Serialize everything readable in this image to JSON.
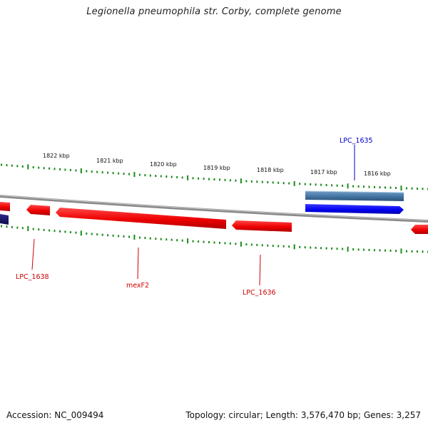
{
  "title": "Legionella pneumophila str. Corby, complete genome",
  "footer": {
    "accession": "Accession: NC_009494",
    "summary": "Topology: circular; Length: 3,576,470 bp; Genes: 3,257"
  },
  "colors": {
    "forward_gene": "#0000f0",
    "forward_gene_highlight": "#4a7aa6",
    "reverse_gene": "#e60000",
    "backbone": "#8a8a8a",
    "tick": "#1a8a1a",
    "forward_label": "#0000cc",
    "reverse_label": "#cc0000"
  },
  "scale": {
    "unit": "kbp",
    "major_ticks": [
      {
        "kbp": 1822,
        "label": "1822 kbp"
      },
      {
        "kbp": 1821,
        "label": "1821 kbp"
      },
      {
        "kbp": 1820,
        "label": "1820 kbp"
      },
      {
        "kbp": 1819,
        "label": "1819 kbp"
      },
      {
        "kbp": 1818,
        "label": "1818 kbp"
      },
      {
        "kbp": 1817,
        "label": "1817 kbp"
      },
      {
        "kbp": 1816,
        "label": "1816 kbp"
      }
    ]
  },
  "gene_labels": [
    {
      "name": "LPC_1635",
      "strand": "forward"
    },
    {
      "name": "LPC_1638",
      "strand": "reverse"
    },
    {
      "name": "mexF2",
      "strand": "reverse"
    },
    {
      "name": "LPC_1636",
      "strand": "reverse"
    }
  ]
}
